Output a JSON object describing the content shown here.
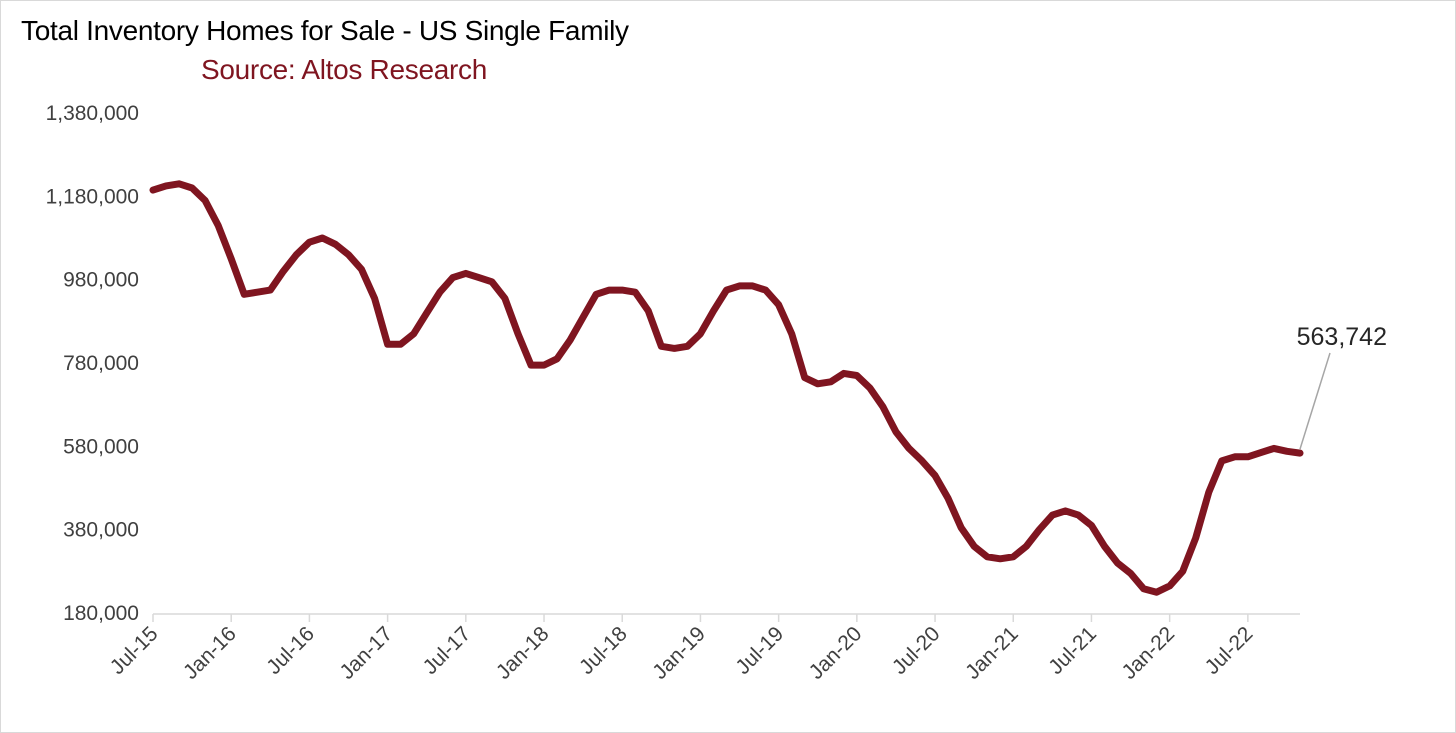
{
  "chart_data": {
    "type": "line",
    "title": "Total Inventory Homes for Sale - US Single Family",
    "subtitle": "Source: Altos Research",
    "xlabel": "",
    "ylabel": "",
    "ylim": [
      180000,
      1380000
    ],
    "yticks": [
      180000,
      380000,
      580000,
      780000,
      980000,
      1180000,
      1380000
    ],
    "ytick_labels": [
      "180,000",
      "380,000",
      "580,000",
      "780,000",
      "980,000",
      "1,180,000",
      "1,380,000"
    ],
    "xlim": [
      "2015-07",
      "2022-11"
    ],
    "xtick_labels": [
      "Jul-15",
      "Jan-16",
      "Jul-16",
      "Jan-17",
      "Jul-17",
      "Jan-18",
      "Jul-18",
      "Jan-19",
      "Jul-19",
      "Jan-20",
      "Jul-20",
      "Jan-21",
      "Jul-21",
      "Jan-22",
      "Jul-22"
    ],
    "grid": false,
    "legend": "none",
    "series": [
      {
        "color": "#7f1520",
        "x": [
          "2015-07",
          "2015-08",
          "2015-09",
          "2015-10",
          "2015-11",
          "2015-12",
          "2016-01",
          "2016-02",
          "2016-03",
          "2016-04",
          "2016-05",
          "2016-06",
          "2016-07",
          "2016-08",
          "2016-09",
          "2016-10",
          "2016-11",
          "2016-12",
          "2017-01",
          "2017-02",
          "2017-03",
          "2017-04",
          "2017-05",
          "2017-06",
          "2017-07",
          "2017-08",
          "2017-09",
          "2017-10",
          "2017-11",
          "2017-12",
          "2018-01",
          "2018-02",
          "2018-03",
          "2018-04",
          "2018-05",
          "2018-06",
          "2018-07",
          "2018-08",
          "2018-09",
          "2018-10",
          "2018-11",
          "2018-12",
          "2019-01",
          "2019-02",
          "2019-03",
          "2019-04",
          "2019-05",
          "2019-06",
          "2019-07",
          "2019-08",
          "2019-09",
          "2019-10",
          "2019-11",
          "2019-12",
          "2020-01",
          "2020-02",
          "2020-03",
          "2020-04",
          "2020-05",
          "2020-06",
          "2020-07",
          "2020-08",
          "2020-09",
          "2020-10",
          "2020-11",
          "2020-12",
          "2021-01",
          "2021-02",
          "2021-03",
          "2021-04",
          "2021-05",
          "2021-06",
          "2021-07",
          "2021-08",
          "2021-09",
          "2021-10",
          "2021-11",
          "2021-12",
          "2022-01",
          "2022-02",
          "2022-03",
          "2022-04",
          "2022-05",
          "2022-06",
          "2022-07",
          "2022-08",
          "2022-09",
          "2022-10",
          "2022-11"
        ],
        "values": [
          1195000,
          1205000,
          1210000,
          1200000,
          1170000,
          1110000,
          1030000,
          945000,
          950000,
          955000,
          1000000,
          1040000,
          1070000,
          1080000,
          1065000,
          1040000,
          1005000,
          935000,
          825000,
          825000,
          850000,
          900000,
          950000,
          985000,
          995000,
          985000,
          975000,
          935000,
          850000,
          775000,
          775000,
          790000,
          835000,
          890000,
          945000,
          955000,
          955000,
          950000,
          905000,
          820000,
          815000,
          820000,
          850000,
          905000,
          955000,
          965000,
          965000,
          955000,
          920000,
          850000,
          745000,
          730000,
          735000,
          755000,
          750000,
          720000,
          675000,
          615000,
          575000,
          545000,
          510000,
          455000,
          385000,
          340000,
          315000,
          310000,
          315000,
          340000,
          380000,
          415000,
          425000,
          415000,
          390000,
          340000,
          300000,
          275000,
          238000,
          230000,
          245000,
          280000,
          360000,
          470000,
          545000,
          555000,
          555000,
          565000,
          575000,
          568000,
          563742
        ]
      }
    ],
    "annotation": {
      "text": "563,742",
      "target": {
        "x": "2022-11",
        "y": 563742
      }
    }
  }
}
